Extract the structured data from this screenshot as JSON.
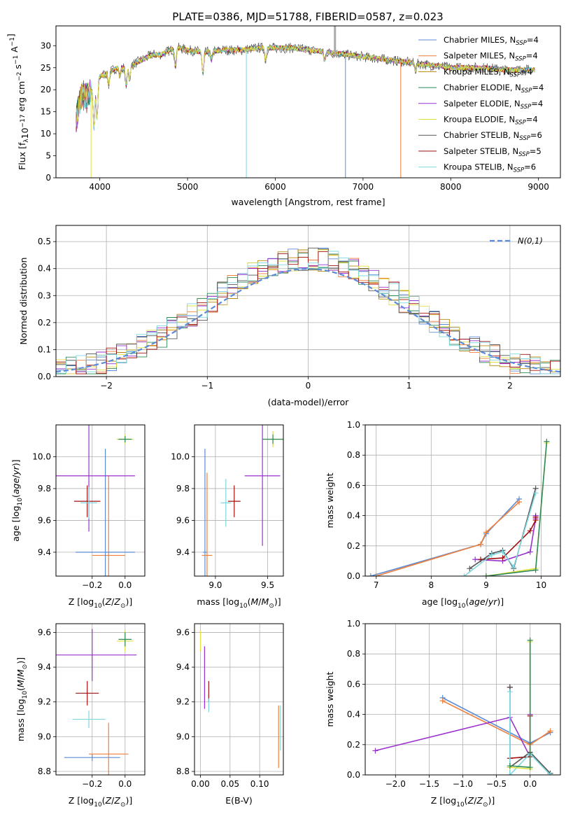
{
  "figure": {
    "title": "PLATE=0386, MJD=51788, FIBERID=0587, z=0.023"
  },
  "colors": [
    "#5b8bd6",
    "#f07f3a",
    "#b8860b",
    "#2e8b57",
    "#9932cc",
    "#e0e040",
    "#555555",
    "#a01010",
    "#7fd8e0"
  ],
  "chart_data": [
    {
      "id": "spectrum",
      "type": "line",
      "xlabel": "wavelength [Angstrom, rest frame]",
      "ylabel": "Flux [f_λ10^−17 erg cm^−2 s^−1 A^−1]",
      "xlim": [
        3500,
        9250
      ],
      "ylim": [
        0,
        34.5
      ],
      "xticks": [
        4000,
        5000,
        6000,
        7000,
        8000,
        9000
      ],
      "yticks": [
        0,
        5,
        10,
        15,
        20,
        25,
        30
      ],
      "grid": false,
      "legend": "top-right",
      "continuum_points": [
        [
          3730,
          13
        ],
        [
          3760,
          17
        ],
        [
          3800,
          19
        ],
        [
          3850,
          18
        ],
        [
          3900,
          20
        ],
        [
          3950,
          22
        ],
        [
          4000,
          23
        ],
        [
          4100,
          24
        ],
        [
          4200,
          25
        ],
        [
          4300,
          25
        ],
        [
          4400,
          26
        ],
        [
          4500,
          27
        ],
        [
          4600,
          28
        ],
        [
          4700,
          28
        ],
        [
          4800,
          29
        ],
        [
          4900,
          29.5
        ],
        [
          5000,
          29
        ],
        [
          5200,
          28.5
        ],
        [
          5400,
          29
        ],
        [
          5600,
          29
        ],
        [
          5800,
          29.5
        ],
        [
          6000,
          29.5
        ],
        [
          6200,
          29.5
        ],
        [
          6400,
          29
        ],
        [
          6600,
          28.5
        ],
        [
          6800,
          28
        ],
        [
          7000,
          27.5
        ],
        [
          7200,
          27
        ],
        [
          7400,
          26.5
        ],
        [
          7600,
          26
        ],
        [
          7800,
          25.5
        ],
        [
          8000,
          25
        ],
        [
          8200,
          25
        ],
        [
          8400,
          25
        ],
        [
          8600,
          24.5
        ],
        [
          8800,
          24.5
        ],
        [
          8950,
          24.5
        ]
      ],
      "observed_max_spike": [
        6680,
        34.5
      ],
      "series": [
        {
          "name_base": "Chabrier MILES",
          "nssp": "4"
        },
        {
          "name_base": "Salpeter MILES",
          "nssp": "4"
        },
        {
          "name_base": "Kroupa MILES",
          "nssp": "4"
        },
        {
          "name_base": "Chabrier ELODIE",
          "nssp": "4"
        },
        {
          "name_base": "Salpeter ELODIE",
          "nssp": "4"
        },
        {
          "name_base": "Kroupa ELODIE",
          "nssp": "4"
        },
        {
          "name_base": "Chabrier STELIB",
          "nssp": "6"
        },
        {
          "name_base": "Salpeter STELIB",
          "nssp": "5"
        },
        {
          "name_base": "Kroupa STELIB",
          "nssp": "6"
        }
      ]
    },
    {
      "id": "residuals",
      "type": "step",
      "xlabel": "(data-model)/error",
      "ylabel": "Normed distribution",
      "xlim": [
        -2.5,
        2.5
      ],
      "ylim": [
        0,
        0.56
      ],
      "xticks": [
        -2,
        -1,
        0,
        1,
        2
      ],
      "yticks": [
        0.0,
        0.1,
        0.2,
        0.3,
        0.4,
        0.5
      ],
      "grid": true,
      "legend": "top-right",
      "reference_label": "N(0,1)",
      "bin_width": 0.1
    },
    {
      "id": "age-vs-Z",
      "type": "errorbar",
      "xlabel": "Z [log10(Z/Z⊙)]",
      "ylabel": "age  [log10(age/yr)]",
      "xlim": [
        -0.42,
        0.12
      ],
      "ylim": [
        9.25,
        10.2
      ],
      "xticks": [
        -0.2,
        0.0
      ],
      "yticks": [
        9.4,
        9.6,
        9.8,
        10.0
      ],
      "grid": true,
      "points": [
        {
          "c": 1,
          "x": -0.1,
          "y": 9.38,
          "ex": 0.1,
          "ey": 0.5
        },
        {
          "c": 0,
          "x": -0.12,
          "y": 9.4,
          "ex": 0.18,
          "ey": 0.65
        },
        {
          "c": 4,
          "x": -0.22,
          "y": 9.88,
          "ex": 0.28,
          "ey": 0.35
        },
        {
          "c": 7,
          "x": -0.23,
          "y": 9.72,
          "ex": 0.08,
          "ey": 0.1
        },
        {
          "c": 8,
          "x": -0.22,
          "y": 9.71,
          "ex": 0.05,
          "ey": 0.1
        },
        {
          "c": 5,
          "x": 0.0,
          "y": 10.11,
          "ex": 0.05,
          "ey": 0.03
        },
        {
          "c": 3,
          "x": 0.0,
          "y": 10.11,
          "ex": 0.04,
          "ey": 0.02
        }
      ]
    },
    {
      "id": "age-vs-mass",
      "type": "errorbar",
      "xlabel": "mass [log10(M/M⊙)]",
      "ylabel": "",
      "xlim": [
        8.8,
        9.65
      ],
      "ylim": [
        9.25,
        10.2
      ],
      "xticks": [
        9.0,
        9.5
      ],
      "yticks": [
        9.4,
        9.6,
        9.8,
        10.0
      ],
      "grid": true,
      "points": [
        {
          "c": 0,
          "x": 8.9,
          "y": 9.4,
          "ex": 0.02,
          "ey": 0.65
        },
        {
          "c": 1,
          "x": 8.92,
          "y": 9.38,
          "ex": 0.05,
          "ey": 0.52
        },
        {
          "c": 8,
          "x": 9.1,
          "y": 9.71,
          "ex": 0.05,
          "ey": 0.15
        },
        {
          "c": 7,
          "x": 9.18,
          "y": 9.72,
          "ex": 0.06,
          "ey": 0.1
        },
        {
          "c": 4,
          "x": 9.45,
          "y": 9.88,
          "ex": 0.17,
          "ey": 0.44
        },
        {
          "c": 5,
          "x": 9.55,
          "y": 10.11,
          "ex": 0.08,
          "ey": 0.05
        },
        {
          "c": 3,
          "x": 9.55,
          "y": 10.11,
          "ex": 0.1,
          "ey": 0.03
        }
      ]
    },
    {
      "id": "weight-vs-age",
      "type": "line",
      "xlabel": "age  [log10(age/yr)]",
      "ylabel": "mass weight",
      "xlim": [
        6.8,
        10.35
      ],
      "ylim": [
        0,
        1.0
      ],
      "xticks": [
        7,
        8,
        9,
        10
      ],
      "yticks": [
        0.0,
        0.2,
        0.4,
        0.6,
        0.8,
        1.0
      ],
      "grid": true,
      "series": [
        {
          "c": 0,
          "x": [
            6.9,
            8.9,
            9.0,
            9.6
          ],
          "y": [
            0.0,
            0.21,
            0.28,
            0.51
          ]
        },
        {
          "c": 1,
          "x": [
            7.0,
            8.9,
            9.0,
            9.6
          ],
          "y": [
            0.0,
            0.21,
            0.29,
            0.49
          ]
        },
        {
          "c": 4,
          "x": [
            8.8,
            9.3,
            9.8,
            9.9,
            9.9
          ],
          "y": [
            0.11,
            0.1,
            0.16,
            0.38,
            0.4
          ]
        },
        {
          "c": 7,
          "x": [
            8.9,
            9.3,
            9.8,
            9.9,
            9.9
          ],
          "y": [
            0.11,
            0.12,
            0.3,
            0.37,
            0.39
          ]
        },
        {
          "c": 6,
          "x": [
            8.7,
            9.1,
            9.3,
            9.5,
            9.9
          ],
          "y": [
            0.05,
            0.15,
            0.17,
            0.05,
            0.58
          ]
        },
        {
          "c": 8,
          "x": [
            8.6,
            9.1,
            9.3,
            9.5,
            9.9
          ],
          "y": [
            0.0,
            0.14,
            0.16,
            0.06,
            0.55
          ]
        },
        {
          "c": 5,
          "x": [
            9.0,
            9.9,
            10.1
          ],
          "y": [
            0.0,
            0.05,
            0.88
          ]
        },
        {
          "c": 3,
          "x": [
            9.0,
            9.9,
            10.1
          ],
          "y": [
            0.0,
            0.04,
            0.89
          ]
        }
      ]
    },
    {
      "id": "mass-vs-Z",
      "type": "errorbar",
      "xlabel": "Z [log10(Z/Z⊙)]",
      "ylabel": "mass [log10(M/M⊙)]",
      "xlim": [
        -0.42,
        0.12
      ],
      "ylim": [
        8.78,
        9.65
      ],
      "xticks": [
        -0.2,
        0.0
      ],
      "yticks": [
        8.8,
        9.0,
        9.2,
        9.4,
        9.6
      ],
      "grid": true,
      "points": [
        {
          "c": 0,
          "x": -0.2,
          "y": 8.88,
          "ex": 0.17,
          "ey": 0.02
        },
        {
          "c": 1,
          "x": -0.1,
          "y": 8.9,
          "ex": 0.12,
          "ey": 0.18
        },
        {
          "c": 8,
          "x": -0.22,
          "y": 9.1,
          "ex": 0.1,
          "ey": 0.05
        },
        {
          "c": 7,
          "x": -0.23,
          "y": 9.25,
          "ex": 0.07,
          "ey": 0.07
        },
        {
          "c": 4,
          "x": -0.2,
          "y": 9.47,
          "ex": 0.27,
          "ey": 0.15
        },
        {
          "c": 5,
          "x": 0.0,
          "y": 9.55,
          "ex": 0.05,
          "ey": 0.06
        },
        {
          "c": 3,
          "x": 0.0,
          "y": 9.56,
          "ex": 0.04,
          "ey": 0.04
        }
      ]
    },
    {
      "id": "mass-vs-ebv",
      "type": "errorbar",
      "xlabel": "E(B-V)",
      "ylabel": "",
      "xlim": [
        -0.01,
        0.14
      ],
      "ylim": [
        8.78,
        9.65
      ],
      "xticks": [
        0.0,
        0.05,
        0.1
      ],
      "yticks": [
        8.8,
        9.0,
        9.2,
        9.4,
        9.6
      ],
      "grid": true,
      "points": [
        {
          "c": 5,
          "x": 0.0,
          "y": 9.55,
          "ex": 0,
          "ey": 0.06
        },
        {
          "c": 4,
          "x": 0.007,
          "y": 9.34,
          "ex": 0,
          "ey": 0.18
        },
        {
          "c": 7,
          "x": 0.014,
          "y": 9.26,
          "ex": 0,
          "ey": 0.06
        },
        {
          "c": 8,
          "x": 0.014,
          "y": 9.18,
          "ex": 0,
          "ey": 0.04
        },
        {
          "c": 1,
          "x": 0.132,
          "y": 9.0,
          "ex": 0,
          "ey": 0.18
        },
        {
          "c": 8,
          "x": 0.135,
          "y": 9.05,
          "ex": 0,
          "ey": 0.13
        }
      ]
    },
    {
      "id": "weight-vs-Z",
      "type": "line",
      "xlabel": "Z [log10(Z/Z⊙)]",
      "ylabel": "mass weight",
      "xlim": [
        -2.45,
        0.45
      ],
      "ylim": [
        0,
        1.0
      ],
      "xticks": [
        -2.0,
        -1.5,
        -1.0,
        -0.5,
        0.0
      ],
      "yticks": [
        0.0,
        0.2,
        0.4,
        0.6,
        0.8,
        1.0
      ],
      "grid": true,
      "series": [
        {
          "c": 0,
          "x": [
            -1.3,
            0.0,
            0.3
          ],
          "y": [
            0.51,
            0.21,
            0.28
          ]
        },
        {
          "c": 1,
          "x": [
            -1.3,
            0.0,
            0.3
          ],
          "y": [
            0.49,
            0.2,
            0.29
          ]
        },
        {
          "c": 4,
          "x": [
            -2.3,
            -0.3,
            0.0,
            0.0
          ],
          "y": [
            0.16,
            0.38,
            0.12,
            0.4
          ]
        },
        {
          "c": 7,
          "x": [
            -0.3,
            -0.3,
            0.0,
            0.0
          ],
          "y": [
            0.58,
            0.11,
            0.12,
            0.39
          ]
        },
        {
          "c": 6,
          "x": [
            -0.3,
            -0.3,
            0.0,
            0.3
          ],
          "y": [
            0.58,
            0.05,
            0.15,
            0.01
          ]
        },
        {
          "c": 8,
          "x": [
            -0.3,
            -0.3,
            0.0,
            0.3
          ],
          "y": [
            0.55,
            0.0,
            0.14,
            0.0
          ]
        },
        {
          "c": 5,
          "x": [
            0.0,
            0.0,
            -0.3
          ],
          "y": [
            0.88,
            0.04,
            0.05
          ]
        },
        {
          "c": 3,
          "x": [
            0.0,
            0.0,
            -0.3
          ],
          "y": [
            0.89,
            0.05,
            0.06
          ]
        }
      ]
    }
  ]
}
